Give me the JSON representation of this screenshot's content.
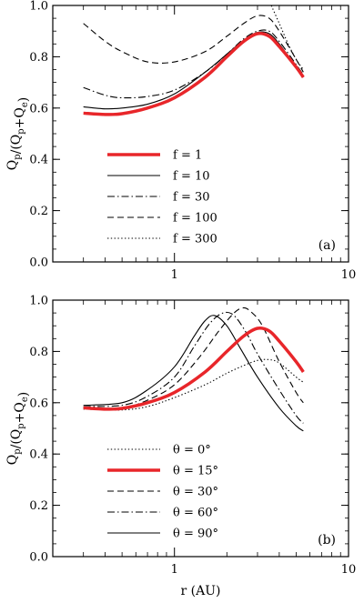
{
  "chart_data": [
    {
      "type": "line",
      "panel_label": "(a)",
      "ylabel": "Q_p/(Q_p+Q_e)",
      "xlabel": "",
      "xscale": "log",
      "xlim": [
        0.2,
        10
      ],
      "ylim": [
        0.0,
        1.0
      ],
      "xticks": [
        1,
        10
      ],
      "xtick_labels": [
        "1",
        "10"
      ],
      "yticks": [
        0.0,
        0.2,
        0.4,
        0.6,
        0.8,
        1.0
      ],
      "ytick_labels": [
        "0.0",
        "0.2",
        "0.4",
        "0.6",
        "0.8",
        "1.0"
      ],
      "grid": false,
      "legend_position": "bottom-left",
      "series": [
        {
          "name": "f = 1",
          "style": "thick",
          "color": "#e8262a",
          "x": [
            0.3,
            0.4,
            0.5,
            0.7,
            1.0,
            1.5,
            2.0,
            2.5,
            3.0,
            3.5,
            4.0,
            5.0,
            5.5
          ],
          "y": [
            0.58,
            0.575,
            0.578,
            0.6,
            0.64,
            0.72,
            0.8,
            0.86,
            0.89,
            0.88,
            0.84,
            0.76,
            0.72
          ]
        },
        {
          "name": "f = 10",
          "style": "solid",
          "color": "#000000",
          "x": [
            0.3,
            0.4,
            0.5,
            0.7,
            1.0,
            1.5,
            2.0,
            2.5,
            3.0,
            3.5,
            4.0,
            5.0,
            5.5
          ],
          "y": [
            0.605,
            0.597,
            0.6,
            0.615,
            0.655,
            0.74,
            0.81,
            0.865,
            0.895,
            0.89,
            0.85,
            0.76,
            0.72
          ]
        },
        {
          "name": "f = 30",
          "style": "dashdot",
          "color": "#000000",
          "x": [
            0.3,
            0.4,
            0.5,
            0.7,
            1.0,
            1.5,
            2.0,
            2.5,
            3.0,
            3.5,
            4.0,
            5.0,
            5.5
          ],
          "y": [
            0.68,
            0.65,
            0.64,
            0.645,
            0.67,
            0.74,
            0.81,
            0.87,
            0.9,
            0.9,
            0.86,
            0.77,
            0.73
          ]
        },
        {
          "name": "f = 100",
          "style": "dashed",
          "color": "#000000",
          "x": [
            0.3,
            0.4,
            0.5,
            0.7,
            1.0,
            1.5,
            2.0,
            2.5,
            3.0,
            3.5,
            4.0,
            5.0,
            5.5
          ],
          "y": [
            0.93,
            0.86,
            0.82,
            0.78,
            0.78,
            0.82,
            0.88,
            0.93,
            0.96,
            0.95,
            0.9,
            0.79,
            0.74
          ]
        },
        {
          "name": "f = 300",
          "style": "dotted",
          "color": "#000000",
          "x": [
            3.6,
            4.0,
            4.5,
            5.0,
            5.5
          ],
          "y": [
            1.0,
            0.93,
            0.85,
            0.79,
            0.75
          ]
        }
      ]
    },
    {
      "type": "line",
      "panel_label": "(b)",
      "ylabel": "Q_p/(Q_p+Q_e)",
      "xlabel": "r (AU)",
      "xscale": "log",
      "xlim": [
        0.2,
        10
      ],
      "ylim": [
        0.0,
        1.0
      ],
      "xticks": [
        1,
        10
      ],
      "xtick_labels": [
        "1",
        "10"
      ],
      "yticks": [
        0.0,
        0.2,
        0.4,
        0.6,
        0.8,
        1.0
      ],
      "ytick_labels": [
        "0.0",
        "0.2",
        "0.4",
        "0.6",
        "0.8",
        "1.0"
      ],
      "grid": false,
      "legend_position": "bottom-left",
      "series": [
        {
          "name": "θ = 0°",
          "style": "dotted",
          "color": "#000000",
          "x": [
            0.3,
            0.5,
            0.7,
            1.0,
            1.5,
            2.0,
            2.5,
            3.0,
            3.5,
            4.0,
            5.0,
            5.5
          ],
          "y": [
            0.575,
            0.572,
            0.585,
            0.62,
            0.67,
            0.715,
            0.745,
            0.765,
            0.768,
            0.755,
            0.7,
            0.68
          ]
        },
        {
          "name": "θ = 15°",
          "style": "thick",
          "color": "#e8262a",
          "x": [
            0.3,
            0.4,
            0.5,
            0.7,
            1.0,
            1.5,
            2.0,
            2.5,
            3.0,
            3.5,
            4.0,
            5.0,
            5.5
          ],
          "y": [
            0.58,
            0.575,
            0.578,
            0.6,
            0.64,
            0.72,
            0.8,
            0.86,
            0.89,
            0.88,
            0.84,
            0.76,
            0.72
          ]
        },
        {
          "name": "θ = 30°",
          "style": "dashed",
          "color": "#000000",
          "x": [
            0.3,
            0.5,
            0.7,
            1.0,
            1.4,
            1.8,
            2.2,
            2.5,
            2.8,
            3.2,
            4.0,
            5.0,
            5.5
          ],
          "y": [
            0.58,
            0.58,
            0.61,
            0.67,
            0.78,
            0.88,
            0.95,
            0.97,
            0.95,
            0.9,
            0.76,
            0.64,
            0.6
          ]
        },
        {
          "name": "θ = 60°",
          "style": "dashdot",
          "color": "#000000",
          "x": [
            0.3,
            0.5,
            0.7,
            1.0,
            1.3,
            1.6,
            1.9,
            2.2,
            2.6,
            3.0,
            4.0,
            5.0,
            5.5
          ],
          "y": [
            0.585,
            0.59,
            0.625,
            0.7,
            0.82,
            0.91,
            0.95,
            0.94,
            0.87,
            0.79,
            0.65,
            0.55,
            0.52
          ]
        },
        {
          "name": "θ = 90°",
          "style": "solid",
          "color": "#000000",
          "x": [
            0.3,
            0.5,
            0.7,
            1.0,
            1.3,
            1.5,
            1.7,
            2.0,
            2.4,
            3.0,
            4.0,
            5.0,
            5.5
          ],
          "y": [
            0.59,
            0.6,
            0.65,
            0.74,
            0.86,
            0.92,
            0.94,
            0.9,
            0.81,
            0.7,
            0.58,
            0.51,
            0.49
          ]
        }
      ]
    }
  ]
}
